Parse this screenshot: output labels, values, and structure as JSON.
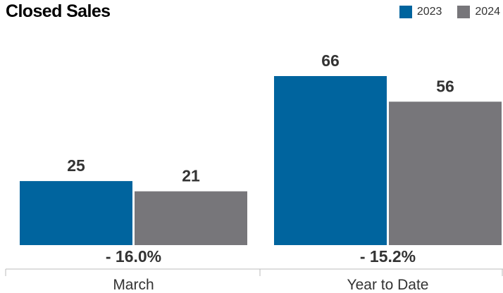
{
  "chart_data": {
    "type": "bar",
    "title": "Closed Sales",
    "categories": [
      "March",
      "Year to Date"
    ],
    "series": [
      {
        "name": "2023",
        "values": [
          25,
          66
        ],
        "color": "#00649E"
      },
      {
        "name": "2024",
        "values": [
          21,
          56
        ],
        "color": "#77767A"
      }
    ],
    "changes": [
      "- 16.0%",
      "- 15.2%"
    ],
    "ylim": [
      0,
      66
    ],
    "grid": false,
    "legend": "top-right"
  }
}
